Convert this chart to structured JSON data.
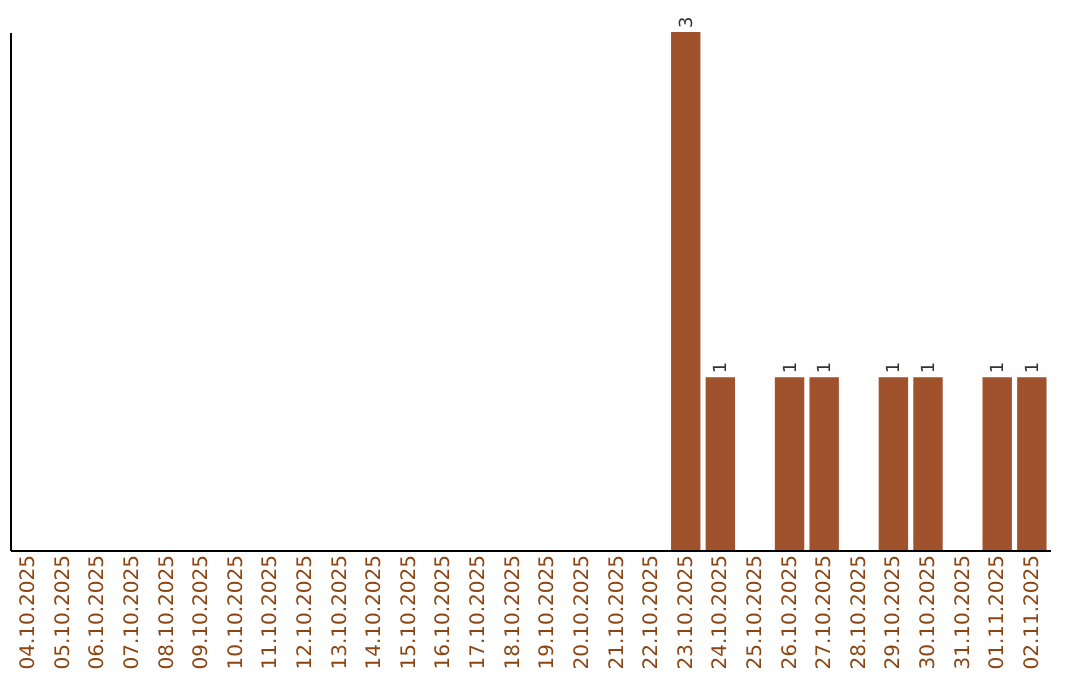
{
  "chart_data": {
    "type": "bar",
    "categories": [
      "04.10.2025",
      "05.10.2025",
      "06.10.2025",
      "07.10.2025",
      "08.10.2025",
      "09.10.2025",
      "10.10.2025",
      "11.10.2025",
      "12.10.2025",
      "13.10.2025",
      "14.10.2025",
      "15.10.2025",
      "16.10.2025",
      "17.10.2025",
      "18.10.2025",
      "19.10.2025",
      "20.10.2025",
      "21.10.2025",
      "22.10.2025",
      "23.10.2025",
      "24.10.2025",
      "25.10.2025",
      "26.10.2025",
      "27.10.2025",
      "28.10.2025",
      "29.10.2025",
      "30.10.2025",
      "31.10.2025",
      "01.11.2025",
      "02.11.2025"
    ],
    "values": [
      null,
      null,
      null,
      null,
      null,
      null,
      null,
      null,
      null,
      null,
      null,
      null,
      null,
      null,
      null,
      null,
      null,
      null,
      null,
      3,
      1,
      null,
      1,
      1,
      null,
      1,
      1,
      null,
      1,
      1
    ],
    "value_labels": [
      null,
      null,
      null,
      null,
      null,
      null,
      null,
      null,
      null,
      null,
      null,
      null,
      null,
      null,
      null,
      null,
      null,
      null,
      null,
      "3",
      "1",
      null,
      "1",
      "1",
      null,
      "1",
      "1",
      null,
      "1",
      "1"
    ],
    "color": "#a0522d",
    "grid": false,
    "tick_labels": "x"
  }
}
